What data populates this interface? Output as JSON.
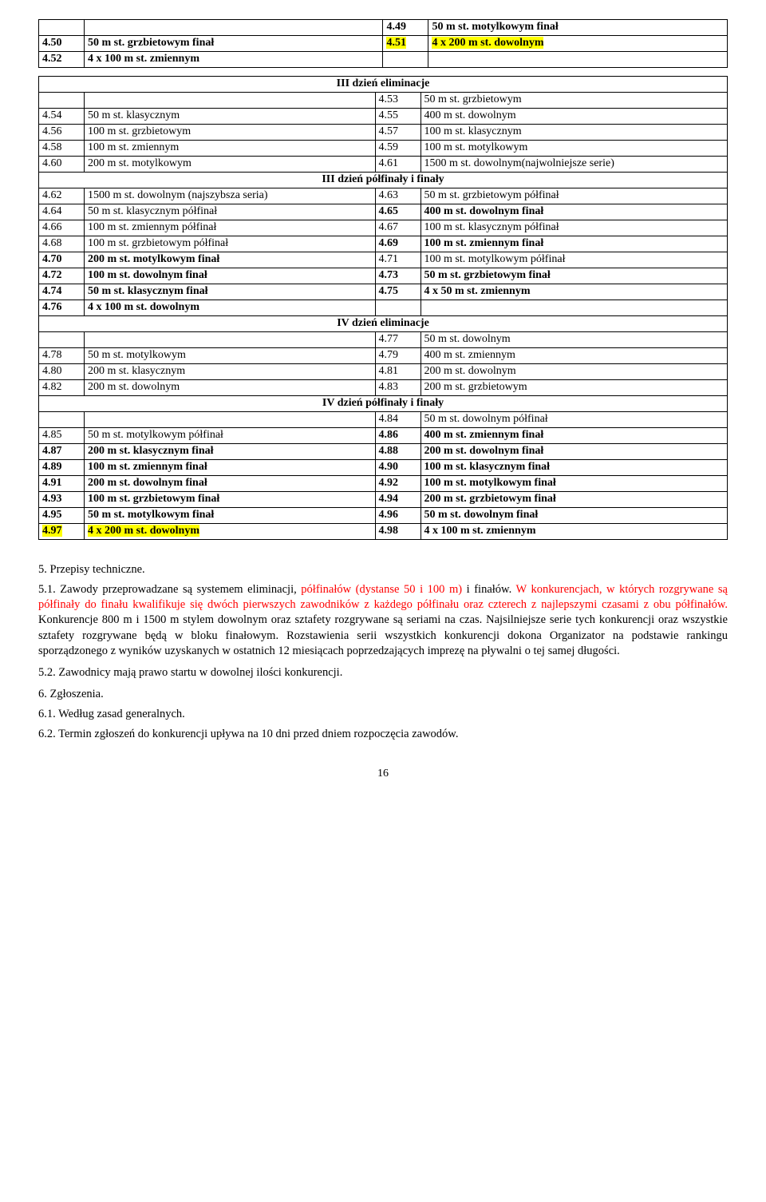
{
  "table1": {
    "rows": [
      {
        "l_num": "",
        "l_desc": "",
        "r_num": "4.49",
        "r_desc": "50 m st. motylkowym finał",
        "l_bold": false,
        "l_hl": false,
        "r_bold": true,
        "r_hl": false
      },
      {
        "l_num": "4.50",
        "l_desc": "50 m st. grzbietowym finał",
        "r_num": "4.51",
        "r_desc": "4 x 200 m st. dowolnym",
        "l_bold": true,
        "l_hl": false,
        "r_bold": true,
        "r_hl": true
      },
      {
        "l_num": "4.52",
        "l_desc": "4 x 100 m st. zmiennym",
        "r_num": "",
        "r_desc": "",
        "l_bold": true,
        "l_hl": false,
        "r_bold": false,
        "r_hl": false
      }
    ]
  },
  "table2": {
    "sections": [
      {
        "header": "III dzień eliminacje",
        "rows": [
          {
            "l_num": "",
            "l_desc": "",
            "r_num": "4.53",
            "r_desc": "50 m st. grzbietowym",
            "l_bold": false,
            "r_bold": false
          },
          {
            "l_num": "4.54",
            "l_desc": "50 m st. klasycznym",
            "r_num": "4.55",
            "r_desc": "400 m st. dowolnym",
            "l_bold": false,
            "r_bold": false
          },
          {
            "l_num": "4.56",
            "l_desc": "100 m st. grzbietowym",
            "r_num": "4.57",
            "r_desc": "100 m st. klasycznym",
            "l_bold": false,
            "r_bold": false
          },
          {
            "l_num": "4.58",
            "l_desc": "100 m st. zmiennym",
            "r_num": "4.59",
            "r_desc": "100 m st. motylkowym",
            "l_bold": false,
            "r_bold": false
          },
          {
            "l_num": "4.60",
            "l_desc": "200 m st. motylkowym",
            "r_num": "4.61",
            "r_desc": "1500 m st. dowolnym(najwolniejsze serie)",
            "l_bold": false,
            "r_bold": false
          }
        ]
      },
      {
        "header": "III dzień półfinały i finały",
        "rows": [
          {
            "l_num": "4.62",
            "l_desc": "1500 m st. dowolnym (najszybsza seria)",
            "r_num": "4.63",
            "r_desc": "50 m st. grzbietowym półfinał",
            "l_bold": false,
            "r_bold": false
          },
          {
            "l_num": "4.64",
            "l_desc": "50 m st. klasycznym półfinał",
            "r_num": "4.65",
            "r_desc": "400 m st. dowolnym finał",
            "l_bold": false,
            "r_bold": true
          },
          {
            "l_num": "4.66",
            "l_desc": "100 m st. zmiennym półfinał",
            "r_num": "4.67",
            "r_desc": "100 m st. klasycznym półfinał",
            "l_bold": false,
            "r_bold": false
          },
          {
            "l_num": "4.68",
            "l_desc": "100 m st. grzbietowym półfinał",
            "r_num": "4.69",
            "r_desc": "100 m st. zmiennym finał",
            "l_bold": false,
            "r_bold": true
          },
          {
            "l_num": "4.70",
            "l_desc": "200 m st. motylkowym finał",
            "r_num": "4.71",
            "r_desc": "100 m st. motylkowym półfinał",
            "l_bold": true,
            "r_bold": false
          },
          {
            "l_num": "4.72",
            "l_desc": "100 m st. dowolnym finał",
            "r_num": "4.73",
            "r_desc": "50 m st. grzbietowym finał",
            "l_bold": true,
            "r_bold": true
          },
          {
            "l_num": "4.74",
            "l_desc": "50 m st. klasycznym finał",
            "r_num": "4.75",
            "r_desc": "4 x 50 m st. zmiennym",
            "l_bold": true,
            "r_bold": true
          },
          {
            "l_num": "4.76",
            "l_desc": "4 x 100 m st. dowolnym",
            "r_num": "",
            "r_desc": "",
            "l_bold": true,
            "r_bold": false
          }
        ]
      },
      {
        "header": "IV dzień eliminacje",
        "rows": [
          {
            "l_num": "",
            "l_desc": "",
            "r_num": "4.77",
            "r_desc": "50 m st. dowolnym",
            "l_bold": false,
            "r_bold": false
          },
          {
            "l_num": "4.78",
            "l_desc": "50 m st. motylkowym",
            "r_num": "4.79",
            "r_desc": "400 m st. zmiennym",
            "l_bold": false,
            "r_bold": false
          },
          {
            "l_num": "4.80",
            "l_desc": "200 m st. klasycznym",
            "r_num": "4.81",
            "r_desc": "200 m st. dowolnym",
            "l_bold": false,
            "r_bold": false
          },
          {
            "l_num": "4.82",
            "l_desc": "200 m st. dowolnym",
            "r_num": "4.83",
            "r_desc": "200 m st. grzbietowym",
            "l_bold": false,
            "r_bold": false
          }
        ]
      },
      {
        "header": "IV dzień półfinały i finały",
        "rows": [
          {
            "l_num": "",
            "l_desc": "",
            "r_num": "4.84",
            "r_desc": "50 m st. dowolnym półfinał",
            "l_bold": false,
            "r_bold": false
          },
          {
            "l_num": "4.85",
            "l_desc": "50 m st. motylkowym półfinał",
            "r_num": "4.86",
            "r_desc": "400 m st. zmiennym finał",
            "l_bold": false,
            "r_bold": true
          },
          {
            "l_num": "4.87",
            "l_desc": "200 m st. klasycznym finał",
            "r_num": "4.88",
            "r_desc": "200 m st. dowolnym finał",
            "l_bold": true,
            "r_bold": true
          },
          {
            "l_num": "4.89",
            "l_desc": "100 m st. zmiennym finał",
            "r_num": "4.90",
            "r_desc": "100 m st. klasycznym finał",
            "l_bold": true,
            "r_bold": true
          },
          {
            "l_num": "4.91",
            "l_desc": "200 m st. dowolnym finał",
            "r_num": "4.92",
            "r_desc": "100 m st. motylkowym finał",
            "l_bold": true,
            "r_bold": true
          },
          {
            "l_num": "4.93",
            "l_desc": "100 m st. grzbietowym finał",
            "r_num": "4.94",
            "r_desc": "200 m st. grzbietowym finał",
            "l_bold": true,
            "r_bold": true
          },
          {
            "l_num": "4.95",
            "l_desc": "50 m st. motylkowym finał",
            "r_num": "4.96",
            "r_desc": "50 m st. dowolnym finał",
            "l_bold": true,
            "r_bold": true
          },
          {
            "l_num": "4.97",
            "l_desc": "4 x 200 m st. dowolnym",
            "r_num": "4.98",
            "r_desc": "4 x 100 m st. zmiennym",
            "l_bold": true,
            "l_hl": true,
            "r_bold": true
          }
        ]
      }
    ]
  },
  "body": {
    "sec5": "5. Przepisy techniczne.",
    "sec5_1_black1": "5.1. Zawody przeprowadzane są systemem eliminacji, ",
    "sec5_1_red1": "półfinałów (dystanse 50 i 100 m)",
    "sec5_1_black2": " i finałów. ",
    "sec5_1_red2": "W konkurencjach, w których rozgrywane są półfinały do finału kwalifikuje się dwóch pierwszych zawodników z każdego półfinału oraz czterech z najlepszymi czasami z obu półfinałów.",
    "sec5_1_black3": " Konkurencje 800 m i 1500 m stylem dowolnym oraz sztafety rozgrywane są seriami na czas. Najsilniejsze serie tych konkurencji oraz wszystkie sztafety rozgrywane będą w bloku finałowym. Rozstawienia serii wszystkich konkurencji dokona Organizator na podstawie rankingu sporządzonego z wyników uzyskanych w ostatnich 12 miesiącach poprzedzających imprezę  na pływalni o tej samej długości.",
    "sec5_2": "5.2. Zawodnicy mają prawo startu w dowolnej ilości konkurencji.",
    "sec6": "6. Zgłoszenia.",
    "sec6_1": "6.1. Według zasad generalnych.",
    "sec6_2": "6.2. Termin zgłoszeń do konkurencji upływa na 10 dni przed dniem rozpoczęcia zawodów."
  },
  "page_number": "16"
}
